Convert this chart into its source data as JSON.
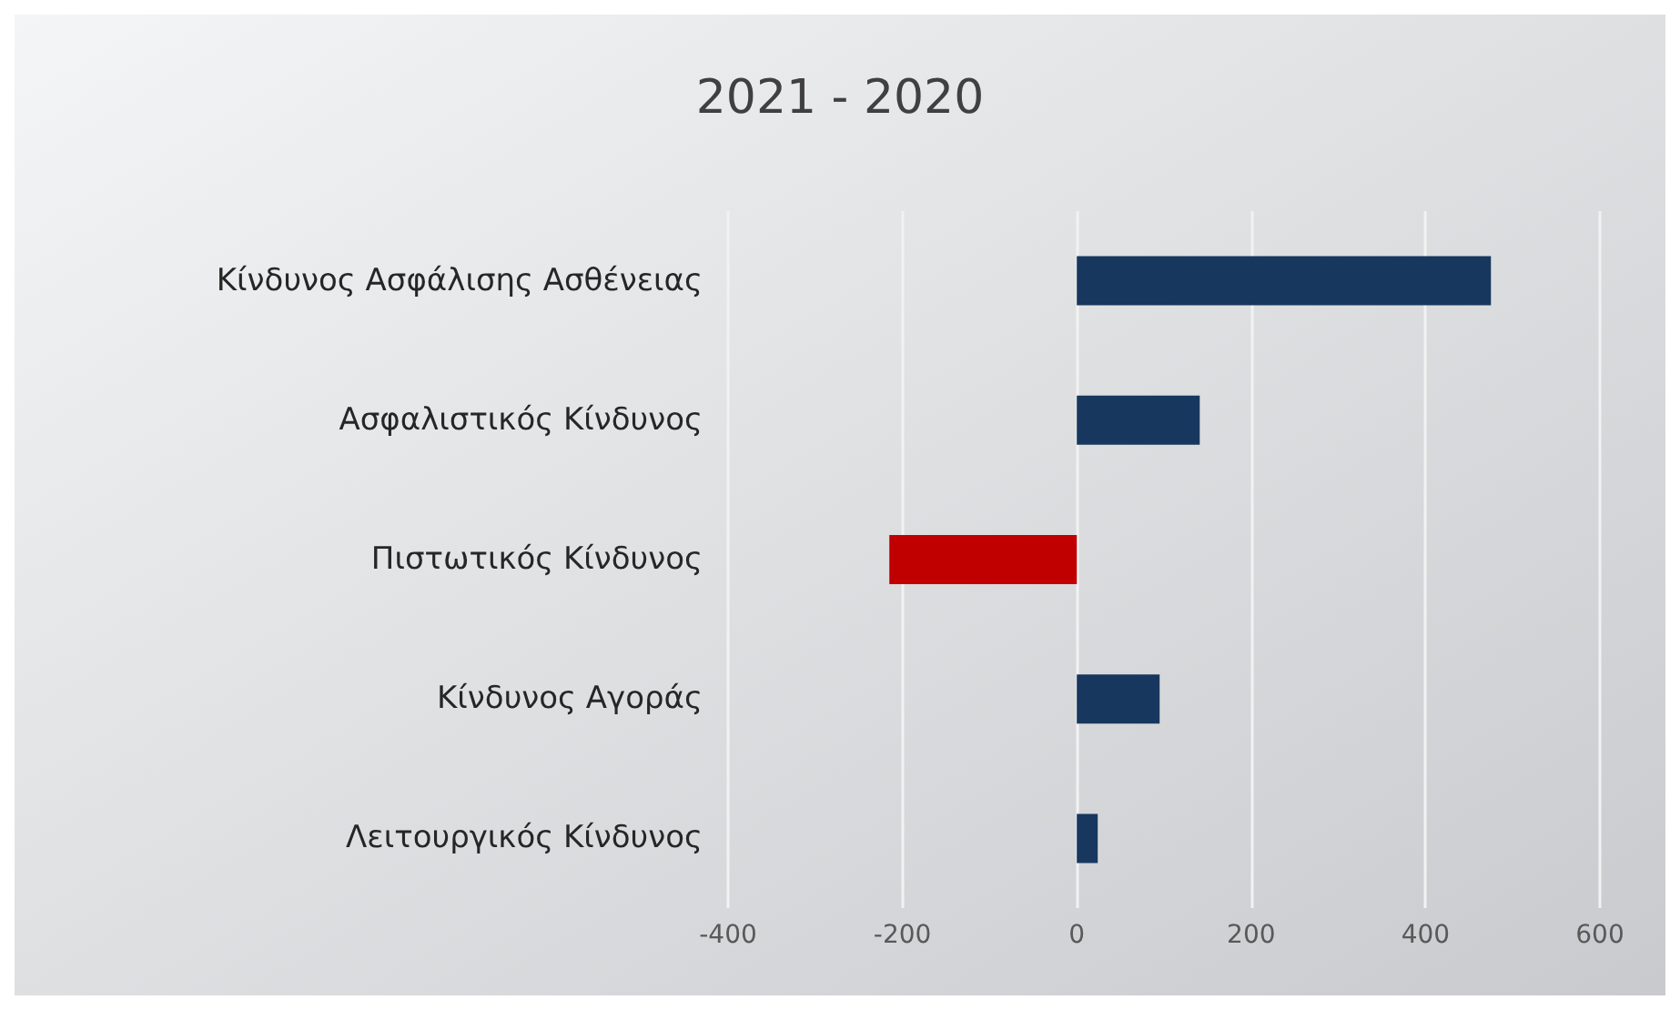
{
  "chart_data": {
    "type": "bar",
    "orientation": "horizontal",
    "title": "2021 - 2020",
    "categories": [
      "Κίνδυνος Ασφάλισης Ασθένειας",
      "Ασφαλιστικός Κίνδυνος",
      "Πιστωτικός Κίνδυνος",
      "Κίνδυνος Αγοράς",
      "Λειτουργικός Κίνδυνος"
    ],
    "values": [
      475,
      141,
      -215,
      95,
      24
    ],
    "colors": [
      "#17375e",
      "#17375e",
      "#c00000",
      "#17375e",
      "#17375e"
    ],
    "xlim": [
      -400,
      600
    ],
    "xticks": [
      -400,
      -200,
      0,
      200,
      400,
      600
    ],
    "grid": "x"
  }
}
